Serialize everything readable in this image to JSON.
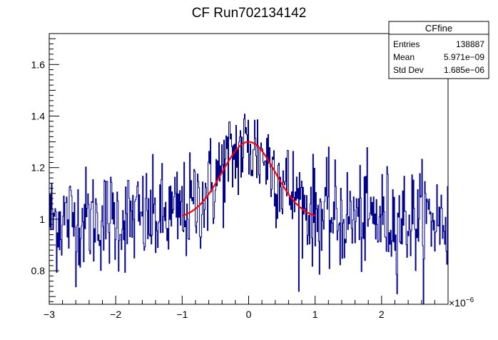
{
  "chart_data": {
    "type": "histogram",
    "title": "CF Run702134142",
    "xlabel": "",
    "ylabel": "",
    "xlim": [
      -3,
      3
    ],
    "ylim": [
      0.67,
      1.72
    ],
    "x_exponent_label": "×10",
    "x_exponent_power": "−6",
    "x_ticks": [
      -3,
      -2,
      -1,
      0,
      1,
      2
    ],
    "x_tick_labels": [
      "−3",
      "−2",
      "−1",
      "0",
      "1",
      "2"
    ],
    "y_ticks": [
      0.8,
      1,
      1.2,
      1.4,
      1.6
    ],
    "y_tick_labels": [
      "0.8",
      "1",
      "1.2",
      "1.4",
      "1.6"
    ],
    "histogram": {
      "color": "#00008b",
      "n_bins": 560,
      "x_range": [
        -3,
        3
      ],
      "approx_profile": {
        "baseline": 1.0,
        "peak_center": 0.0,
        "peak_amplitude": 0.28,
        "peak_sigma": 0.45,
        "noise_spread": 0.1
      }
    },
    "fit": {
      "color": "#ff0000",
      "model": "gaussian",
      "x_range": [
        -1,
        1
      ],
      "baseline": 1.0,
      "amplitude": 0.3,
      "mean": 0.0,
      "sigma": 0.4
    },
    "stats_box": {
      "name": "CFfine",
      "rows": [
        {
          "label": "Entries",
          "value": "138887"
        },
        {
          "label": "Mean",
          "value": "5.971e−09"
        },
        {
          "label": "Std Dev",
          "value": "1.685e−06"
        }
      ]
    }
  }
}
